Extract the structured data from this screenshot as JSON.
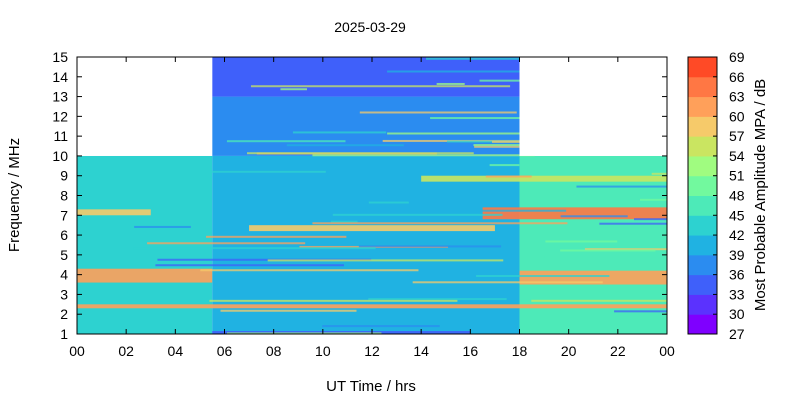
{
  "chart_data": {
    "type": "heatmap",
    "title": "2025-03-29",
    "xlabel": "UT Time / hrs",
    "ylabel": "Frequency / MHz",
    "xlim": [
      0,
      24
    ],
    "ylim": [
      1,
      15
    ],
    "x_ticks": [
      "00",
      "02",
      "04",
      "06",
      "08",
      "10",
      "12",
      "14",
      "16",
      "18",
      "20",
      "22",
      "00"
    ],
    "y_ticks": [
      "1",
      "2",
      "3",
      "4",
      "5",
      "6",
      "7",
      "8",
      "9",
      "10",
      "11",
      "12",
      "13",
      "14",
      "15"
    ],
    "colorbar": {
      "label": "Most Probable Amplitude MPA / dB",
      "min": 27,
      "max": 69,
      "step": 3,
      "ticks": [
        "27",
        "30",
        "33",
        "36",
        "39",
        "42",
        "45",
        "48",
        "51",
        "54",
        "57",
        "60",
        "63",
        "66",
        "69"
      ],
      "colors": [
        "#7f00ff",
        "#5b32fe",
        "#3f60fa",
        "#2b8cf0",
        "#20b2e2",
        "#2dd2d0",
        "#4deab8",
        "#72f99e",
        "#a0fc80",
        "#cae561",
        "#f6ca6a",
        "#ffa05a",
        "#ff7744",
        "#ff4a26",
        "#ff0000"
      ]
    },
    "no_data_regions": [
      {
        "x_from": 0,
        "x_to": 5.5,
        "y_from": 10,
        "y_to": 15
      },
      {
        "x_from": 18,
        "x_to": 24,
        "y_from": 10,
        "y_to": 15
      }
    ],
    "features": [
      {
        "x_from": 0,
        "x_to": 5.5,
        "y_from": 1,
        "y_to": 10,
        "level": 42
      },
      {
        "x_from": 5.5,
        "x_to": 18,
        "y_from": 1,
        "y_to": 10,
        "level": 40
      },
      {
        "x_from": 18,
        "x_to": 24,
        "y_from": 1,
        "y_to": 10,
        "level": 44
      },
      {
        "x_from": 5.5,
        "x_to": 18,
        "y_from": 10,
        "y_to": 13,
        "level": 37
      },
      {
        "x_from": 5.5,
        "x_to": 18,
        "y_from": 13,
        "y_to": 15,
        "level": 32
      },
      {
        "x_from": 0,
        "x_to": 5.5,
        "y_from": 3.6,
        "y_to": 4.3,
        "level": 60
      },
      {
        "x_from": 18,
        "x_to": 24,
        "y_from": 3.5,
        "y_to": 4.2,
        "level": 60
      },
      {
        "x_from": 16.5,
        "x_to": 24,
        "y_from": 6.8,
        "y_to": 7.4,
        "level": 62
      },
      {
        "x_from": 7,
        "x_to": 17,
        "y_from": 6.2,
        "y_to": 6.5,
        "level": 58
      },
      {
        "x_from": 0,
        "x_to": 3,
        "y_from": 7.0,
        "y_to": 7.3,
        "level": 58
      },
      {
        "x_from": 0,
        "x_to": 24,
        "y_from": 2.3,
        "y_to": 2.5,
        "level": 60
      },
      {
        "x_from": 5.5,
        "x_to": 16,
        "y_from": 1.0,
        "y_to": 1.15,
        "level": 33
      },
      {
        "x_from": 14,
        "x_to": 24,
        "y_from": 8.7,
        "y_to": 9.0,
        "level": 55
      }
    ]
  }
}
